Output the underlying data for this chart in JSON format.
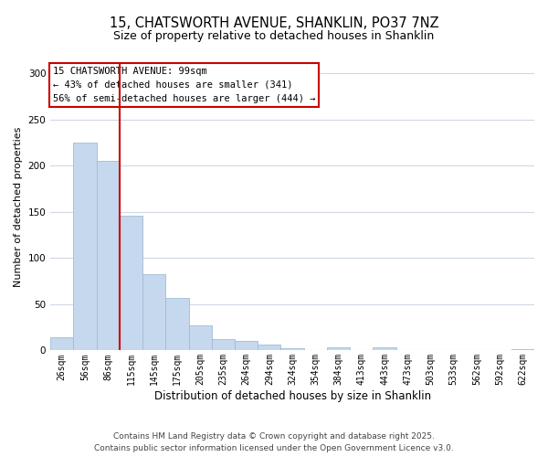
{
  "title": "15, CHATSWORTH AVENUE, SHANKLIN, PO37 7NZ",
  "subtitle": "Size of property relative to detached houses in Shanklin",
  "xlabel": "Distribution of detached houses by size in Shanklin",
  "ylabel": "Number of detached properties",
  "bar_labels": [
    "26sqm",
    "56sqm",
    "86sqm",
    "115sqm",
    "145sqm",
    "175sqm",
    "205sqm",
    "235sqm",
    "264sqm",
    "294sqm",
    "324sqm",
    "354sqm",
    "384sqm",
    "413sqm",
    "443sqm",
    "473sqm",
    "503sqm",
    "533sqm",
    "562sqm",
    "592sqm",
    "622sqm"
  ],
  "bar_heights": [
    14,
    225,
    205,
    146,
    83,
    57,
    27,
    12,
    10,
    6,
    2,
    0,
    3,
    0,
    3,
    0,
    0,
    0,
    0,
    0,
    1
  ],
  "bar_color": "#c5d8ed",
  "bar_edge_color": "#a0bcd8",
  "vline_color": "#cc0000",
  "annotation_text": "15 CHATSWORTH AVENUE: 99sqm\n← 43% of detached houses are smaller (341)\n56% of semi-detached houses are larger (444) →",
  "annotation_box_color": "#ffffff",
  "annotation_box_edge_color": "#cc0000",
  "ylim": [
    0,
    310
  ],
  "yticks": [
    0,
    50,
    100,
    150,
    200,
    250,
    300
  ],
  "footer_line1": "Contains HM Land Registry data © Crown copyright and database right 2025.",
  "footer_line2": "Contains public sector information licensed under the Open Government Licence v3.0.",
  "background_color": "#ffffff",
  "grid_color": "#d0d8e4",
  "title_fontsize": 10.5,
  "subtitle_fontsize": 9,
  "annotation_fontsize": 7.5,
  "footer_fontsize": 6.5,
  "ylabel_fontsize": 8,
  "xlabel_fontsize": 8.5
}
